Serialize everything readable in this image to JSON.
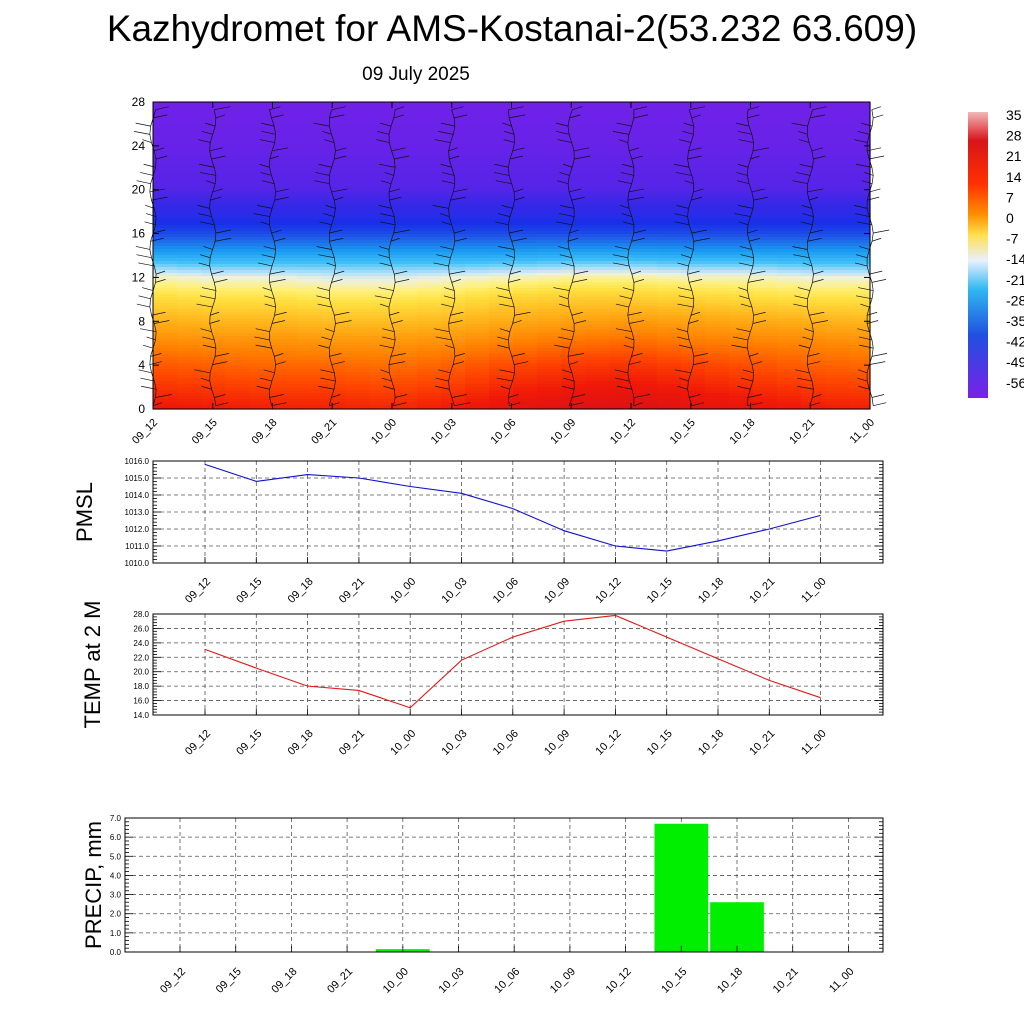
{
  "title": "Kazhydromet for AMS-Kostanai-2(53.232 63.609)",
  "date": "09 July 2025",
  "colorbar": {
    "labels": [
      "35",
      "28",
      "21",
      "14",
      "7",
      "0",
      "-7",
      "-14",
      "-21",
      "-28",
      "-35",
      "-42",
      "-49",
      "-56"
    ]
  },
  "chart_data": [
    {
      "type": "heatmap",
      "x_ticks": [
        "09_12",
        "09_15",
        "09_18",
        "09_21",
        "10_00",
        "10_03",
        "10_06",
        "10_09",
        "10_12",
        "10_15",
        "10_18",
        "10_21",
        "11_00"
      ],
      "y_ticks": [
        "0",
        "4",
        "8",
        "12",
        "16",
        "20",
        "24",
        "28"
      ],
      "ylim": [
        0,
        28
      ],
      "colorbar_range": [
        -56,
        35
      ],
      "levels": [
        0,
        2,
        4,
        6,
        8,
        10,
        12,
        13,
        14,
        16,
        18,
        20,
        24,
        28
      ],
      "values_by_level": [
        [
          22,
          21,
          20,
          20,
          19,
          21,
          24,
          26,
          27,
          25,
          23,
          21,
          20
        ],
        [
          17,
          16,
          15,
          15,
          14,
          16,
          19,
          21,
          22,
          20,
          18,
          16,
          15
        ],
        [
          12,
          11,
          10,
          10,
          9,
          11,
          14,
          16,
          17,
          15,
          13,
          11,
          10
        ],
        [
          6,
          5,
          5,
          4,
          4,
          5,
          7,
          9,
          10,
          8,
          7,
          6,
          5
        ],
        [
          0,
          -1,
          -1,
          -2,
          -2,
          -1,
          1,
          2,
          3,
          2,
          1,
          0,
          -1
        ],
        [
          -6,
          -7,
          -7,
          -8,
          -8,
          -7,
          -5,
          -4,
          -4,
          -5,
          -6,
          -7,
          -7
        ],
        [
          -12,
          -13,
          -13,
          -14,
          -14,
          -13,
          -12,
          -11,
          -11,
          -12,
          -12,
          -13,
          -13
        ],
        [
          -18,
          -19,
          -19,
          -19,
          -19,
          -19,
          -18,
          -17,
          -17,
          -18,
          -18,
          -19,
          -19
        ],
        [
          -25,
          -25,
          -25,
          -25,
          -25,
          -25,
          -25,
          -24,
          -24,
          -25,
          -25,
          -25,
          -25
        ],
        [
          -38,
          -38,
          -38,
          -38,
          -38,
          -38,
          -38,
          -38,
          -38,
          -38,
          -38,
          -38,
          -38
        ],
        [
          -47,
          -47,
          -47,
          -47,
          -47,
          -47,
          -47,
          -47,
          -47,
          -47,
          -47,
          -47,
          -47
        ],
        [
          -52,
          -52,
          -52,
          -52,
          -52,
          -52,
          -52,
          -52,
          -52,
          -52,
          -52,
          -52,
          -52
        ],
        [
          -54,
          -54,
          -54,
          -54,
          -54,
          -54,
          -54,
          -54,
          -54,
          -54,
          -54,
          -54,
          -54
        ],
        [
          -55,
          -55,
          -55,
          -55,
          -55,
          -55,
          -55,
          -55,
          -55,
          -55,
          -55,
          -55,
          -55
        ]
      ]
    },
    {
      "type": "line",
      "ylabel": "PMSL",
      "categories": [
        "09_12",
        "09_15",
        "09_18",
        "09_21",
        "10_00",
        "10_03",
        "10_06",
        "10_09",
        "10_12",
        "10_15",
        "10_18",
        "10_21",
        "11_00"
      ],
      "values": [
        1015.8,
        1014.8,
        1015.2,
        1015.0,
        1014.5,
        1014.1,
        1013.2,
        1011.9,
        1011.0,
        1010.7,
        1011.3,
        1012.0,
        1012.8
      ],
      "ylim": [
        1010.0,
        1016.0
      ],
      "yticks": [
        "1016.0",
        "1015.0",
        "1014.0",
        "1013.0",
        "1012.0",
        "1011.0",
        "1010.0"
      ],
      "color": "#1010d0"
    },
    {
      "type": "line",
      "ylabel": "TEMP at 2 M",
      "categories": [
        "09_12",
        "09_15",
        "09_18",
        "09_21",
        "10_00",
        "10_03",
        "10_06",
        "10_09",
        "10_12",
        "10_15",
        "10_18",
        "10_21",
        "11_00"
      ],
      "values": [
        23.1,
        20.5,
        18.0,
        17.4,
        15.0,
        21.6,
        24.8,
        27.0,
        27.8,
        24.8,
        21.8,
        18.8,
        16.4
      ],
      "ylim": [
        14.0,
        28.0
      ],
      "yticks": [
        "28.0",
        "26.0",
        "24.0",
        "22.0",
        "20.0",
        "18.0",
        "16.0",
        "14.0"
      ],
      "color": "#e01818"
    },
    {
      "type": "bar",
      "ylabel": "PRECIP, mm",
      "categories": [
        "09_12",
        "09_15",
        "09_18",
        "09_21",
        "10_00",
        "10_03",
        "10_06",
        "10_09",
        "10_12",
        "10_15",
        "10_18",
        "10_21",
        "11_00"
      ],
      "values": [
        0,
        0,
        0,
        0,
        0.15,
        0,
        0,
        0,
        0,
        6.7,
        2.6,
        0,
        0
      ],
      "ylim": [
        0,
        7.0
      ],
      "yticks": [
        "7.0",
        "6.0",
        "5.0",
        "4.0",
        "3.0",
        "2.0",
        "1.0",
        "0.0"
      ],
      "color": "#00ee00"
    }
  ]
}
